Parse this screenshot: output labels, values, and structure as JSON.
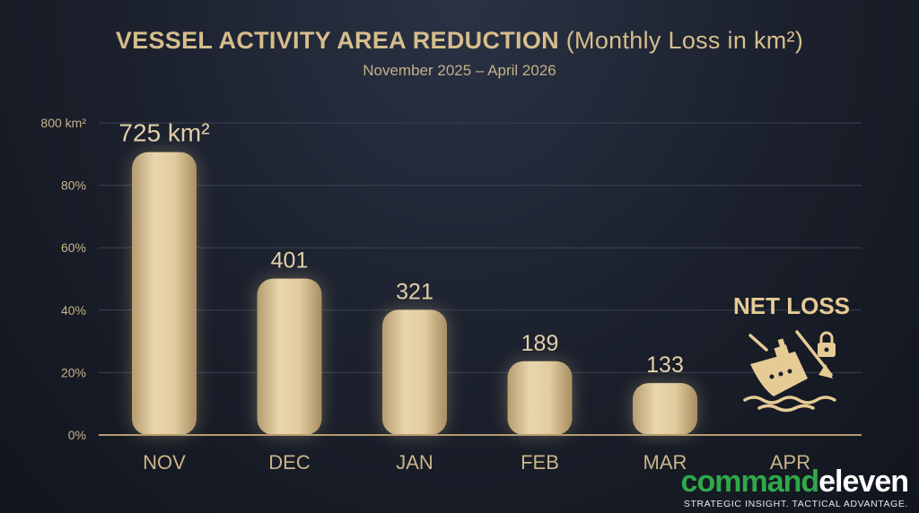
{
  "chart_data": {
    "type": "bar",
    "title_bold": "VESSEL ACTIVITY AREA REDUCTION",
    "title_rest": "(Monthly Loss in km²)",
    "subtitle": "November 2025 – April 2026",
    "categories": [
      "NOV",
      "DEC",
      "JAN",
      "FEB",
      "MAR",
      "APR"
    ],
    "values": [
      725,
      401,
      321,
      189,
      133,
      null
    ],
    "data_labels": [
      "725 km²",
      "401",
      "321",
      "189",
      "133",
      ""
    ],
    "y_ticks": [
      "0%",
      "20%",
      "40%",
      "60%",
      "80%",
      "800 km²"
    ],
    "ylim": [
      0,
      800
    ],
    "grid": true,
    "bar_color": "#c9b48a",
    "annotation": {
      "text": "NET LOSS",
      "category": "APR"
    }
  },
  "logo": {
    "part1": "command",
    "part2": "eleven",
    "tagline": "STRATEGIC INSIGHT. TACTICAL ADVANTAGE.",
    "colors": {
      "part1": "#2fa84a",
      "part2": "#ffffff"
    }
  }
}
